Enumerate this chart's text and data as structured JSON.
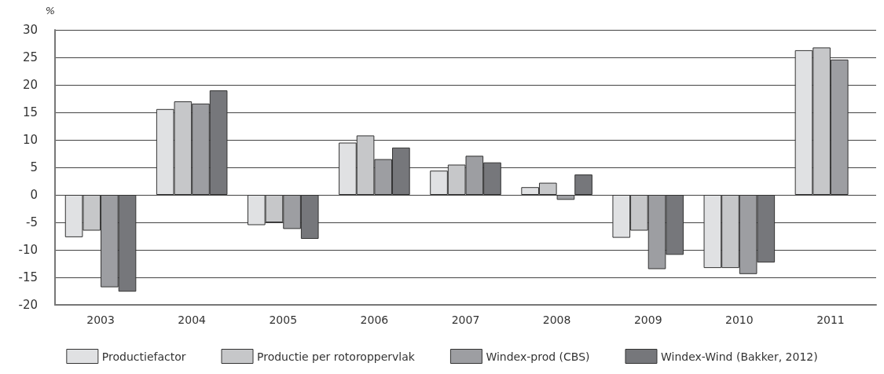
{
  "chart_data": {
    "type": "bar",
    "ylabel": "%",
    "categories": [
      "2003",
      "2004",
      "2005",
      "2006",
      "2007",
      "2008",
      "2009",
      "2010",
      "2011"
    ],
    "series": [
      {
        "name": "Productiefactor",
        "color": "#e0e1e3",
        "values": [
          -7.7,
          15.6,
          -5.5,
          9.5,
          4.4,
          1.4,
          -7.8,
          -13.3,
          26.3
        ]
      },
      {
        "name": "Productie per rotoroppervlak",
        "color": "#c6c7c9",
        "values": [
          -6.5,
          17.0,
          -5.0,
          10.8,
          5.5,
          2.2,
          -6.5,
          -13.3,
          26.8
        ]
      },
      {
        "name": "Windex-prod (CBS)",
        "color": "#9d9ea2",
        "values": [
          -16.8,
          16.6,
          -6.2,
          6.5,
          7.1,
          -0.9,
          -13.5,
          -14.4,
          24.6
        ]
      },
      {
        "name": "Windex-Wind (Bakker, 2012)",
        "color": "#76777b",
        "values": [
          -17.6,
          19.0,
          -8.0,
          8.6,
          5.9,
          3.7,
          -10.9,
          -12.3,
          null
        ]
      }
    ],
    "ylim": [
      -20,
      30
    ],
    "yticks": [
      -20,
      -15,
      -10,
      -5,
      0,
      5,
      10,
      15,
      20,
      25,
      30
    ],
    "grid": "y",
    "legend": "bottom"
  }
}
